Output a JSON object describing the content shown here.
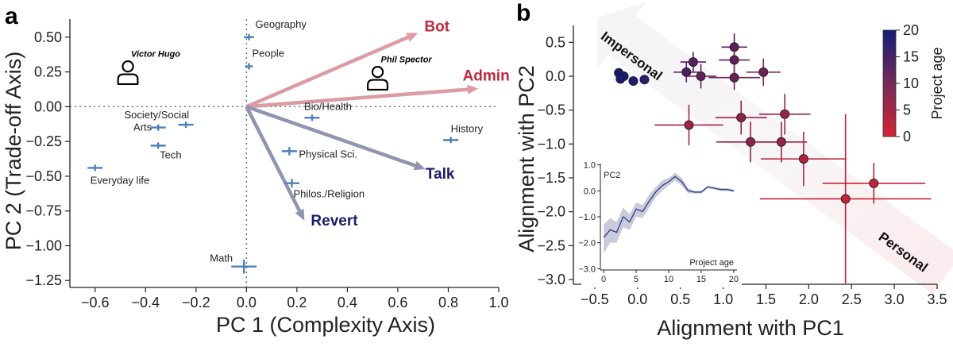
{
  "panel_a_letter": "a",
  "panel_b_letter": "b",
  "chart_data": [
    {
      "type": "biplot",
      "xlabel": "PC 1 (Complexity Axis)",
      "ylabel": "PC 2 (Trade-off Axis)",
      "xlim": [
        -0.7,
        1.0
      ],
      "ylim": [
        -1.3,
        0.63
      ],
      "xticks": [
        -0.6,
        -0.4,
        -0.2,
        0.0,
        0.2,
        0.4,
        0.6,
        0.8,
        1.0
      ],
      "xtick_labels": [
        "−0.6",
        "−0.4",
        "−0.2",
        "0.0",
        "0.2",
        "0.4",
        "0.6",
        "0.8",
        "1.0"
      ],
      "yticks": [
        0.5,
        0.25,
        0.0,
        -0.25,
        -0.5,
        -0.75,
        -1.0,
        -1.25
      ],
      "ytick_labels": [
        "0.50",
        "0.25",
        "0.00",
        "−0.25",
        "−0.50",
        "−0.75",
        "−1.00",
        "−1.25"
      ],
      "arrows": [
        {
          "label": "Bot",
          "x": 0.68,
          "y": 0.53,
          "color": "#c0283f"
        },
        {
          "label": "Admin",
          "x": 0.92,
          "y": 0.13,
          "color": "#c0283f"
        },
        {
          "label": "Talk",
          "x": 0.71,
          "y": -0.45,
          "color": "#1a1a6e"
        },
        {
          "label": "Revert",
          "x": 0.23,
          "y": -0.82,
          "color": "#1a1a6e"
        }
      ],
      "arrow_colors": {
        "red": "#dc9aa2",
        "blue": "#8f94b2"
      },
      "categories": [
        {
          "label": "Geography",
          "x": 0.01,
          "y": 0.5,
          "xerr": 0.02,
          "yerr": 0.02
        },
        {
          "label": "People",
          "x": 0.01,
          "y": 0.29,
          "xerr": 0.01,
          "yerr": 0.01
        },
        {
          "label": "Bio/Health",
          "x": 0.26,
          "y": -0.08,
          "xerr": 0.03,
          "yerr": 0.02
        },
        {
          "label": "Society/Social",
          "x": -0.24,
          "y": -0.13,
          "xerr": 0.03,
          "yerr": 0.02
        },
        {
          "label": "Arts",
          "x": -0.35,
          "y": -0.15,
          "xerr": 0.03,
          "yerr": 0.02
        },
        {
          "label": "Tech",
          "x": -0.35,
          "y": -0.28,
          "xerr": 0.03,
          "yerr": 0.02
        },
        {
          "label": "Everyday life",
          "x": -0.6,
          "y": -0.44,
          "xerr": 0.03,
          "yerr": 0.02
        },
        {
          "label": "History",
          "x": 0.81,
          "y": -0.24,
          "xerr": 0.03,
          "yerr": 0.02
        },
        {
          "label": "Physical Sci.",
          "x": 0.17,
          "y": -0.32,
          "xerr": 0.03,
          "yerr": 0.03
        },
        {
          "label": "Philos./Religion",
          "x": 0.18,
          "y": -0.55,
          "xerr": 0.03,
          "yerr": 0.03
        },
        {
          "label": "Math",
          "x": -0.01,
          "y": -1.15,
          "xerr": 0.05,
          "yerr": 0.05
        }
      ],
      "personas": [
        {
          "label": "Victor Hugo",
          "x": -0.47,
          "y": 0.25
        },
        {
          "label": "Phil Spector",
          "x": 0.52,
          "y": 0.21
        }
      ],
      "marker_color": "#4f7fbf",
      "reference_lines": "dotted lines at x=0 and y=0"
    },
    {
      "type": "scatter",
      "xlabel": "Alignment with PC1",
      "ylabel": "Alignment with PC2",
      "xlim": [
        -0.75,
        3.5
      ],
      "ylim": [
        -3.07,
        0.75
      ],
      "xticks": [
        -0.5,
        0.0,
        0.5,
        1.0,
        1.5,
        2.0,
        2.5,
        3.0,
        3.5
      ],
      "xtick_labels": [
        "−0.5",
        "0.0",
        "0.5",
        "1.0",
        "1.5",
        "2.0",
        "2.5",
        "3.0",
        "3.5"
      ],
      "yticks": [
        0.5,
        0.0,
        -0.5,
        -1.0,
        -1.5,
        -2.0,
        -2.5,
        -3.0
      ],
      "ytick_labels": [
        "0.5",
        "0.0",
        "−0.5",
        "−1.0",
        "−1.5",
        "−2.0",
        "−2.5",
        "−3.0"
      ],
      "band_labels": [
        "Impersonal",
        "Personal"
      ],
      "colorbar": {
        "title": "Project age",
        "min": 0,
        "max": 20,
        "ticks": [
          0,
          5,
          10,
          15,
          20
        ],
        "colors": [
          "#d52332",
          "#141c78"
        ]
      },
      "points": [
        {
          "x": -0.22,
          "y": 0.05,
          "xerr": 0.03,
          "yerr": 0.03,
          "age": 20
        },
        {
          "x": -0.16,
          "y": 0.0,
          "xerr": 0.03,
          "yerr": 0.03,
          "age": 20
        },
        {
          "x": -0.2,
          "y": -0.04,
          "xerr": 0.03,
          "yerr": 0.03,
          "age": 20
        },
        {
          "x": -0.05,
          "y": -0.07,
          "xerr": 0.03,
          "yerr": 0.03,
          "age": 19
        },
        {
          "x": 0.08,
          "y": -0.05,
          "xerr": 0.04,
          "yerr": 0.04,
          "age": 18
        },
        {
          "x": 0.57,
          "y": 0.06,
          "xerr": 0.15,
          "yerr": 0.15,
          "age": 14
        },
        {
          "x": 0.65,
          "y": 0.21,
          "xerr": 0.15,
          "yerr": 0.15,
          "age": 13
        },
        {
          "x": 0.74,
          "y": 0.0,
          "xerr": 0.18,
          "yerr": 0.18,
          "age": 12
        },
        {
          "x": 1.13,
          "y": 0.43,
          "xerr": 0.15,
          "yerr": 0.2,
          "age": 13
        },
        {
          "x": 1.13,
          "y": 0.24,
          "xerr": 0.18,
          "yerr": 0.2,
          "age": 12
        },
        {
          "x": 1.13,
          "y": -0.02,
          "xerr": 0.3,
          "yerr": 0.18,
          "age": 11
        },
        {
          "x": 1.47,
          "y": 0.06,
          "xerr": 0.2,
          "yerr": 0.2,
          "age": 10
        },
        {
          "x": 0.6,
          "y": -0.72,
          "xerr": 0.4,
          "yerr": 0.3,
          "age": 5
        },
        {
          "x": 1.21,
          "y": -0.61,
          "xerr": 0.3,
          "yerr": 0.25,
          "age": 7
        },
        {
          "x": 1.72,
          "y": -0.56,
          "xerr": 0.3,
          "yerr": 0.3,
          "age": 6
        },
        {
          "x": 1.32,
          "y": -0.97,
          "xerr": 0.4,
          "yerr": 0.3,
          "age": 7
        },
        {
          "x": 1.68,
          "y": -0.97,
          "xerr": 0.3,
          "yerr": 0.3,
          "age": 6
        },
        {
          "x": 1.94,
          "y": -1.22,
          "xerr": 0.5,
          "yerr": 0.4,
          "age": 3
        },
        {
          "x": 2.76,
          "y": -1.58,
          "xerr": 0.6,
          "yerr": 0.3,
          "age": 2
        },
        {
          "x": 2.43,
          "y": -1.81,
          "xerr": 1.0,
          "yerr": 1.25,
          "age": 1
        }
      ]
    },
    {
      "type": "line",
      "ylabel": "PC2",
      "xlabel": "Project age",
      "xlim": [
        -0.5,
        20.5
      ],
      "ylim": [
        -3.05,
        1.05
      ],
      "xticks": [
        0,
        5,
        10,
        15,
        20
      ],
      "xtick_labels": [
        "0",
        "5",
        "10",
        "15",
        "20"
      ],
      "yticks": [
        1.0,
        0.0,
        -1.0,
        -2.0,
        -3.0
      ],
      "ytick_labels": [
        "1.0",
        "0.0",
        "−1.0",
        "−2.0",
        "−3.0"
      ],
      "line_color": "#2a3a90",
      "band_color": "#c9ccd8",
      "x": [
        0,
        1,
        2,
        3,
        4,
        5,
        6,
        7,
        8,
        9,
        10,
        11,
        12,
        13,
        14,
        15,
        16,
        17,
        18,
        19,
        20
      ],
      "y": [
        -1.8,
        -1.5,
        -1.6,
        -1.0,
        -1.2,
        -0.7,
        -0.8,
        -0.4,
        -0.05,
        0.2,
        0.35,
        0.55,
        0.35,
        0.0,
        -0.05,
        -0.05,
        0.15,
        0.1,
        0.05,
        0.05,
        0.0
      ],
      "lower": [
        -2.4,
        -2.0,
        -2.0,
        -1.4,
        -1.5,
        -1.0,
        -1.05,
        -0.65,
        -0.25,
        0.0,
        0.2,
        0.4,
        0.2,
        -0.1,
        -0.1,
        -0.1,
        0.1,
        0.05,
        0.0,
        0.0,
        -0.05
      ],
      "upper": [
        -1.3,
        -1.05,
        -1.2,
        -0.65,
        -0.9,
        -0.45,
        -0.55,
        -0.15,
        0.15,
        0.4,
        0.5,
        0.7,
        0.5,
        0.1,
        0.0,
        0.0,
        0.2,
        0.15,
        0.1,
        0.1,
        0.05
      ]
    }
  ]
}
